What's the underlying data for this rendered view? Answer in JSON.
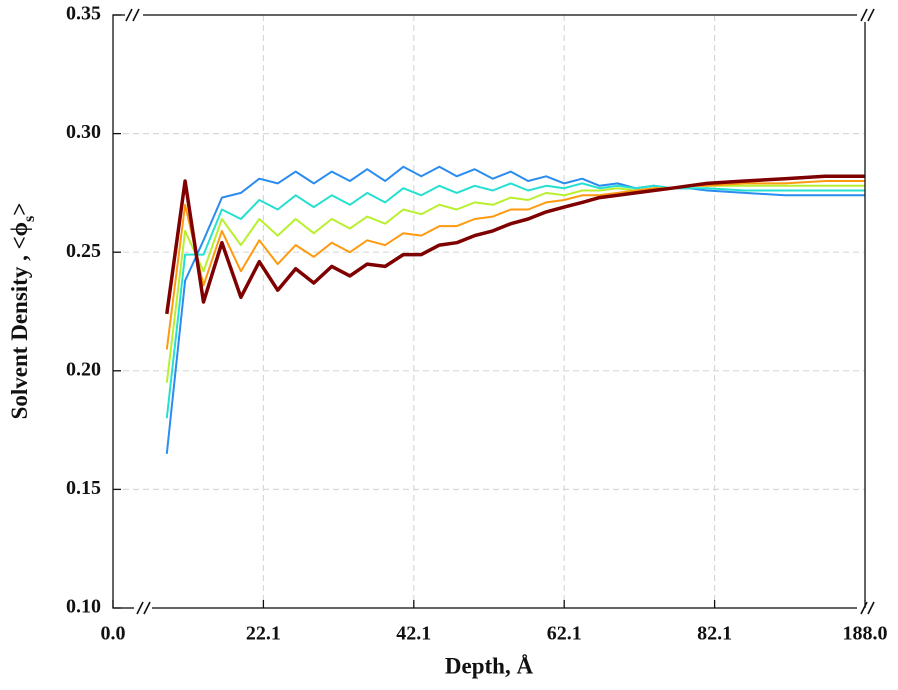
{
  "chart_data": {
    "type": "line",
    "x_label": "Depth, Å",
    "y_label": "Solvent Density , <ϕ",
    "y_label_sub": "s",
    "y_label_end": ">",
    "x": [
      7.9,
      10.6,
      13.3,
      16.0,
      18.8,
      21.5,
      24.0,
      26.4,
      28.8,
      31.2,
      33.6,
      35.9,
      38.3,
      40.7,
      43.1,
      45.5,
      47.8,
      50.2,
      52.6,
      55.0,
      57.3,
      59.7,
      62.1,
      64.5,
      66.8,
      69.2,
      71.6,
      74.0,
      76.4,
      78.7,
      81.1,
      103.3,
      131.5,
      159.8,
      188.0
    ],
    "series": [
      {
        "color": "#2a8cf0",
        "values": [
          0.165,
          0.238,
          0.255,
          0.273,
          0.275,
          0.281,
          0.279,
          0.284,
          0.279,
          0.284,
          0.28,
          0.285,
          0.28,
          0.286,
          0.282,
          0.286,
          0.282,
          0.285,
          0.281,
          0.284,
          0.28,
          0.282,
          0.279,
          0.281,
          0.278,
          0.279,
          0.277,
          0.278,
          0.277,
          0.277,
          0.276,
          0.275,
          0.274,
          0.274,
          0.274
        ]
      },
      {
        "color": "#25e0d0",
        "values": [
          0.18,
          0.249,
          0.249,
          0.268,
          0.264,
          0.272,
          0.268,
          0.274,
          0.269,
          0.274,
          0.27,
          0.275,
          0.271,
          0.277,
          0.274,
          0.278,
          0.275,
          0.278,
          0.276,
          0.279,
          0.276,
          0.278,
          0.277,
          0.279,
          0.277,
          0.278,
          0.277,
          0.278,
          0.277,
          0.277,
          0.277,
          0.276,
          0.276,
          0.276,
          0.276
        ]
      },
      {
        "color": "#b8f030",
        "values": [
          0.195,
          0.259,
          0.242,
          0.264,
          0.253,
          0.264,
          0.257,
          0.264,
          0.258,
          0.264,
          0.26,
          0.265,
          0.262,
          0.268,
          0.266,
          0.27,
          0.268,
          0.271,
          0.27,
          0.273,
          0.272,
          0.275,
          0.274,
          0.276,
          0.276,
          0.277,
          0.276,
          0.277,
          0.277,
          0.278,
          0.278,
          0.278,
          0.278,
          0.278,
          0.278
        ]
      },
      {
        "color": "#ff9a10",
        "values": [
          0.209,
          0.27,
          0.236,
          0.259,
          0.242,
          0.255,
          0.245,
          0.253,
          0.248,
          0.254,
          0.25,
          0.255,
          0.253,
          0.258,
          0.257,
          0.261,
          0.261,
          0.264,
          0.265,
          0.268,
          0.268,
          0.271,
          0.272,
          0.274,
          0.274,
          0.275,
          0.276,
          0.277,
          0.277,
          0.278,
          0.278,
          0.279,
          0.279,
          0.28,
          0.28
        ]
      },
      {
        "color": "#7f0000",
        "values": [
          0.224,
          0.28,
          0.229,
          0.254,
          0.231,
          0.246,
          0.234,
          0.243,
          0.237,
          0.244,
          0.24,
          0.245,
          0.244,
          0.249,
          0.249,
          0.253,
          0.254,
          0.257,
          0.259,
          0.262,
          0.264,
          0.267,
          0.269,
          0.271,
          0.273,
          0.274,
          0.275,
          0.276,
          0.277,
          0.278,
          0.279,
          0.28,
          0.281,
          0.282,
          0.282
        ]
      }
    ],
    "xlim": [
      0,
      188
    ],
    "xticks": [
      {
        "value": 0,
        "label": "0.0"
      },
      22.1,
      42.1,
      62.1,
      82.1,
      {
        "value": 188,
        "label": "188.0"
      }
    ],
    "x_scale": "piecewise",
    "ylim": [
      0.1,
      0.35
    ],
    "yticks": [
      {
        "value": 0.1,
        "label": "0.10"
      },
      0.15,
      {
        "value": 0.2,
        "label": "0.20"
      },
      0.25,
      {
        "value": 0.3,
        "label": "0.30"
      },
      0.35
    ],
    "grid": true
  }
}
